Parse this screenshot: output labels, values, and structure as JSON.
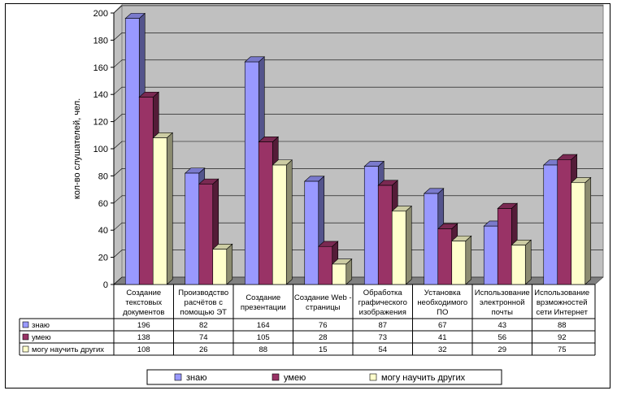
{
  "chart_data": {
    "type": "bar",
    "ylabel": "кол-во слушателей, чел.",
    "ylim": [
      0,
      200
    ],
    "yticks": [
      0,
      20,
      40,
      60,
      80,
      100,
      120,
      140,
      160,
      180,
      200
    ],
    "grid": true,
    "legend_position": "bottom",
    "data_table": true,
    "categories": [
      [
        "Создание",
        "текстовых",
        "документов"
      ],
      [
        "Производство",
        "расчётов с",
        "помощью ЭТ"
      ],
      [
        "Создание",
        "презентации"
      ],
      [
        "Создание Web -",
        "страницы"
      ],
      [
        "Обработка",
        "графического",
        "изображения"
      ],
      [
        "Установка",
        "необходимого",
        "ПО"
      ],
      [
        "Использование",
        "электронной",
        "почты"
      ],
      [
        "Использование",
        "врзможностей",
        "сети Интернет"
      ]
    ],
    "series": [
      {
        "name": "знаю",
        "color": "#9999FF",
        "values": [
          196,
          82,
          164,
          76,
          87,
          67,
          43,
          88
        ]
      },
      {
        "name": "умею",
        "color": "#993366",
        "values": [
          138,
          74,
          105,
          28,
          73,
          41,
          56,
          92
        ]
      },
      {
        "name": "могу  научить других",
        "color": "#FFFFCC",
        "values": [
          108,
          26,
          88,
          15,
          54,
          32,
          29,
          75
        ]
      }
    ]
  }
}
